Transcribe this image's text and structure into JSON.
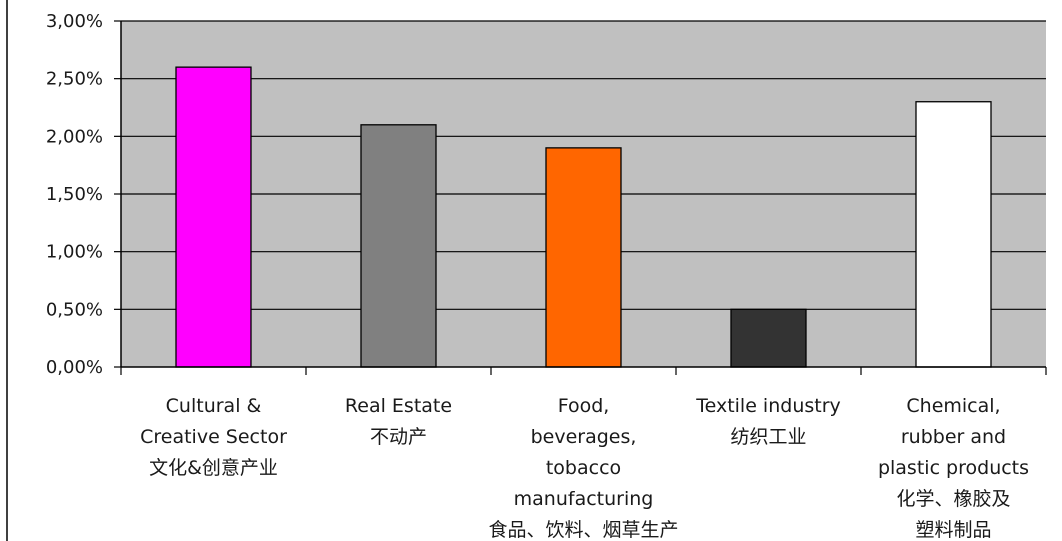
{
  "chart_data": {
    "type": "bar",
    "categories": [
      [
        "Cultural &",
        "Creative Sector",
        "文化&创意产业"
      ],
      [
        "Real Estate",
        "不动产"
      ],
      [
        "Food,",
        "beverages,",
        "tobacco",
        "manufacturing",
        "食品、饮料、烟草生产"
      ],
      [
        "Textile industry",
        "纺织工业"
      ],
      [
        "Chemical,",
        "rubber and",
        "plastic products",
        "化学、橡胶及",
        "塑料制品"
      ]
    ],
    "values": [
      2.6,
      2.1,
      1.9,
      0.5,
      2.3
    ],
    "colors": [
      "#ff00ff",
      "#808080",
      "#ff6600",
      "#333333",
      "#ffffff"
    ],
    "title": "",
    "xlabel": "",
    "ylabel": "",
    "ylim": [
      0,
      3.0
    ],
    "yticks": [
      0,
      0.5,
      1.0,
      1.5,
      2.0,
      2.5,
      3.0
    ],
    "ytick_labels": [
      "0,00%",
      "0,50%",
      "1,00%",
      "1,50%",
      "2,00%",
      "2,50%",
      "3,00%"
    ],
    "grid": true,
    "legend": "none",
    "plot_background": "#c0c0c0"
  }
}
